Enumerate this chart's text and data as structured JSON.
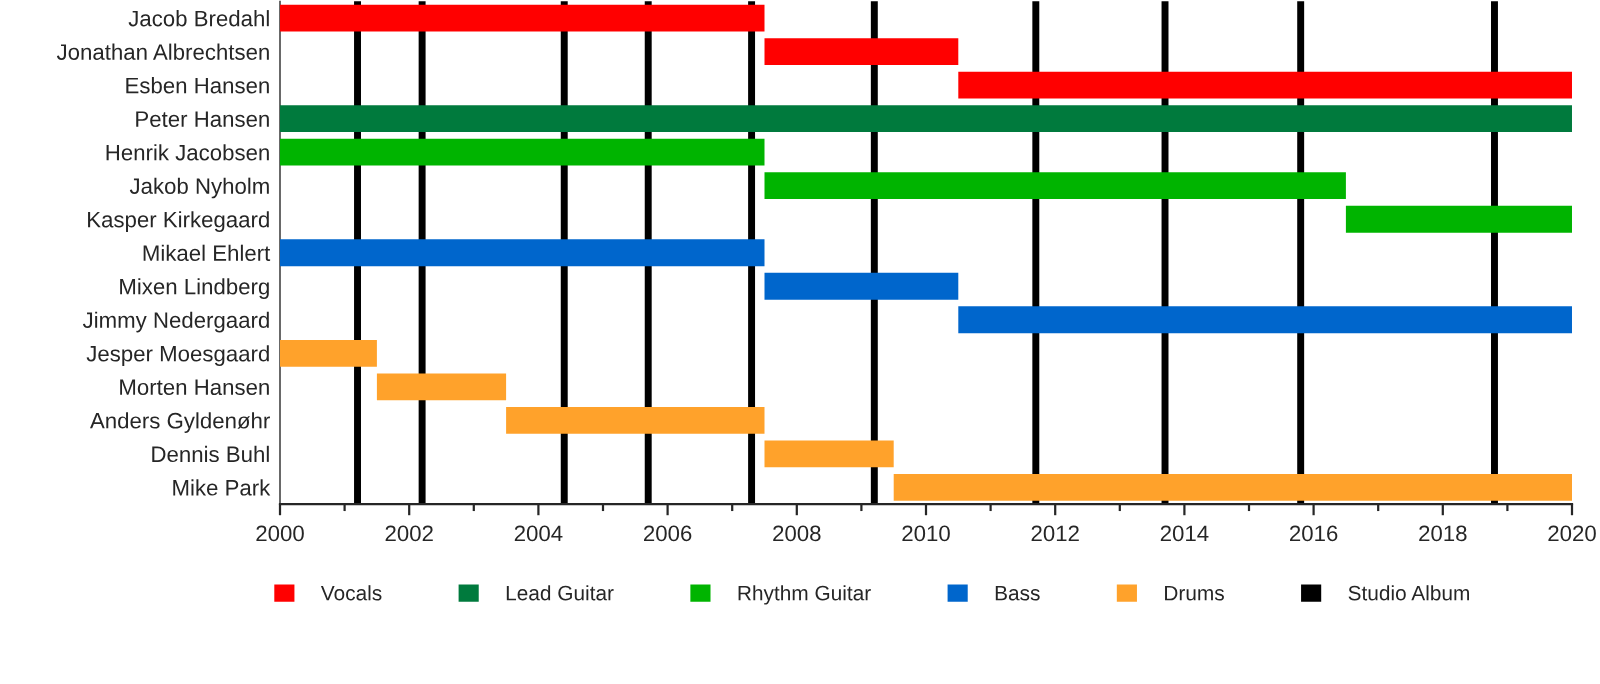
{
  "chart_data": {
    "type": "bar",
    "orientation": "horizontal",
    "categories": [
      "Jacob Bredahl",
      "Jonathan Albrechtsen",
      "Esben Hansen",
      "Peter Hansen",
      "Henrik Jacobsen",
      "Jakob Nyholm",
      "Kasper Kirkegaard",
      "Mikael Ehlert",
      "Mixen Lindberg",
      "Jimmy Nedergaard",
      "Jesper Moesgaard",
      "Morten Hansen",
      "Anders Gyldenøhr",
      "Dennis Buhl",
      "Mike Park"
    ],
    "series": [
      {
        "name": "Vocals",
        "color": "#ff0000",
        "values": [
          7.5,
          3,
          9.5,
          null,
          null,
          null,
          null,
          null,
          null,
          null,
          null,
          null,
          null,
          null,
          null
        ],
        "base": [
          2000,
          2007.5,
          2010.5,
          null,
          null,
          null,
          null,
          null,
          null,
          null,
          null,
          null,
          null,
          null,
          null
        ]
      },
      {
        "name": "Lead Guitar",
        "color": "#007a3d",
        "values": [
          null,
          null,
          null,
          20,
          null,
          null,
          null,
          null,
          null,
          null,
          null,
          null,
          null,
          null,
          null
        ],
        "base": [
          null,
          null,
          null,
          2000,
          null,
          null,
          null,
          null,
          null,
          null,
          null,
          null,
          null,
          null,
          null
        ]
      },
      {
        "name": "Rhythm Guitar",
        "color": "#00b400",
        "values": [
          null,
          null,
          null,
          null,
          7.5,
          9,
          3.5,
          null,
          null,
          null,
          null,
          null,
          null,
          null,
          null
        ],
        "base": [
          null,
          null,
          null,
          null,
          2000,
          2007.5,
          2016.5,
          null,
          null,
          null,
          null,
          null,
          null,
          null,
          null
        ]
      },
      {
        "name": "Bass",
        "color": "#0066cc",
        "values": [
          null,
          null,
          null,
          null,
          null,
          null,
          null,
          7.5,
          3,
          9.5,
          null,
          null,
          null,
          null,
          null
        ],
        "base": [
          null,
          null,
          null,
          null,
          null,
          null,
          null,
          2000,
          2007.5,
          2010.5,
          null,
          null,
          null,
          null,
          null
        ]
      },
      {
        "name": "Drums",
        "color": "#ffa22b",
        "values": [
          null,
          null,
          null,
          null,
          null,
          null,
          null,
          null,
          null,
          null,
          1.5,
          2,
          4,
          2,
          10.5
        ],
        "base": [
          null,
          null,
          null,
          null,
          null,
          null,
          null,
          null,
          null,
          null,
          2000,
          2001.5,
          2003.5,
          2007.5,
          2009.5
        ]
      }
    ],
    "ref_lines": [
      {
        "axis": "x",
        "value": 2001.2,
        "label": "Studio Album",
        "color": "#000000"
      },
      {
        "axis": "x",
        "value": 2002.2,
        "color": "#000000"
      },
      {
        "axis": "x",
        "value": 2004.4,
        "color": "#000000"
      },
      {
        "axis": "x",
        "value": 2005.7,
        "color": "#000000"
      },
      {
        "axis": "x",
        "value": 2007.3,
        "color": "#000000"
      },
      {
        "axis": "x",
        "value": 2009.2,
        "color": "#000000"
      },
      {
        "axis": "x",
        "value": 2011.7,
        "color": "#000000"
      },
      {
        "axis": "x",
        "value": 2013.7,
        "color": "#000000"
      },
      {
        "axis": "x",
        "value": 2015.8,
        "color": "#000000"
      },
      {
        "axis": "x",
        "value": 2018.8,
        "color": "#000000"
      }
    ],
    "xlim": [
      2000,
      2020
    ],
    "xticks": [
      2000,
      {
        "value": 2001,
        "label": null
      },
      2002,
      {
        "value": 2003,
        "label": null
      },
      2004,
      {
        "value": 2005,
        "label": null
      },
      2006,
      {
        "value": 2007,
        "label": null
      },
      2008,
      {
        "value": 2009,
        "label": null
      },
      2010,
      {
        "value": 2011,
        "label": null
      },
      2012,
      {
        "value": 2013,
        "label": null
      },
      2014,
      {
        "value": 2015,
        "label": null
      },
      2016,
      {
        "value": 2017,
        "label": null
      },
      2018,
      {
        "value": 2019,
        "label": null
      },
      2020
    ],
    "legend": "bottom",
    "grid": false
  }
}
